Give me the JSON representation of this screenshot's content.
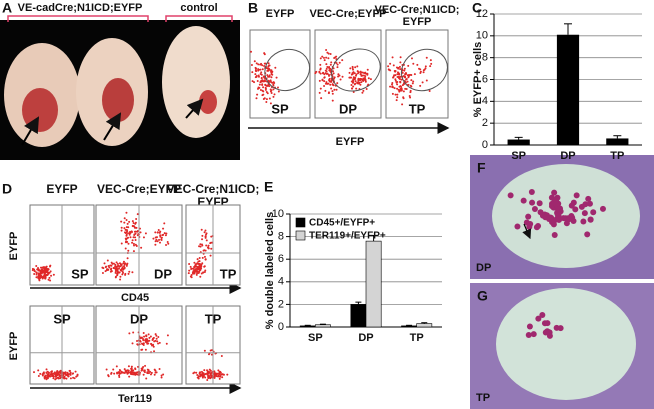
{
  "panel_a": {
    "letter": "A",
    "group_label": "VE-cadCre;N1ICD;EYFP",
    "control_label": "control"
  },
  "panel_b": {
    "letter": "B",
    "plots": [
      {
        "title": [
          "EYFP"
        ],
        "gate": "SP"
      },
      {
        "title": [
          "VEC-Cre;EYFP"
        ],
        "gate": "DP"
      },
      {
        "title": [
          "VEC-Cre;N1ICD;",
          "EYFP"
        ],
        "gate": "TP"
      }
    ],
    "x_label": "EYFP"
  },
  "panel_d": {
    "letter": "D",
    "titles": [
      [
        "EYFP"
      ],
      [
        "VEC-Cre;EYFP"
      ],
      [
        "VEC-Cre;N1ICD;",
        "EYFP"
      ]
    ],
    "rows": [
      {
        "y_label": "EYFP",
        "gates": [
          "SP",
          "DP",
          "TP"
        ],
        "x_label": "CD45"
      },
      {
        "y_label": "EYFP",
        "gates": [
          "SP",
          "DP",
          "TP"
        ],
        "x_label": "Ter119"
      }
    ]
  },
  "panel_f": {
    "letter": "F",
    "label": "DP"
  },
  "panel_g": {
    "letter": "G",
    "label": "TP"
  },
  "chart_data": [
    {
      "type": "bar",
      "panel": "C",
      "y_label": "% EYFP+ cells",
      "categories": [
        "SP",
        "DP",
        "TP"
      ],
      "values": [
        0.5,
        10.1,
        0.6
      ],
      "errors": [
        0.2,
        1.0,
        0.25
      ],
      "color": "#000000",
      "ylim": [
        0,
        12
      ],
      "yticks": [
        0,
        2,
        4,
        6,
        8,
        10,
        12
      ],
      "grid": true
    },
    {
      "type": "grouped_bar",
      "panel": "E",
      "y_label": "% double labeled cells",
      "categories": [
        "SP",
        "DP",
        "TP"
      ],
      "series": [
        {
          "name": "CD45+/EYFP+",
          "color": "#000000",
          "values": [
            0.1,
            2.0,
            0.1
          ],
          "errors": [
            0.05,
            0.2,
            0.05
          ]
        },
        {
          "name": "TER119+/EYFP+",
          "color": "#d4d4d4",
          "values": [
            0.2,
            7.6,
            0.3
          ],
          "errors": [
            0.05,
            0.5,
            0.08
          ]
        }
      ],
      "ylim": [
        0,
        10
      ],
      "yticks": [
        0,
        2,
        4,
        6,
        8,
        10
      ],
      "grid": true,
      "legend": "upper left"
    }
  ]
}
